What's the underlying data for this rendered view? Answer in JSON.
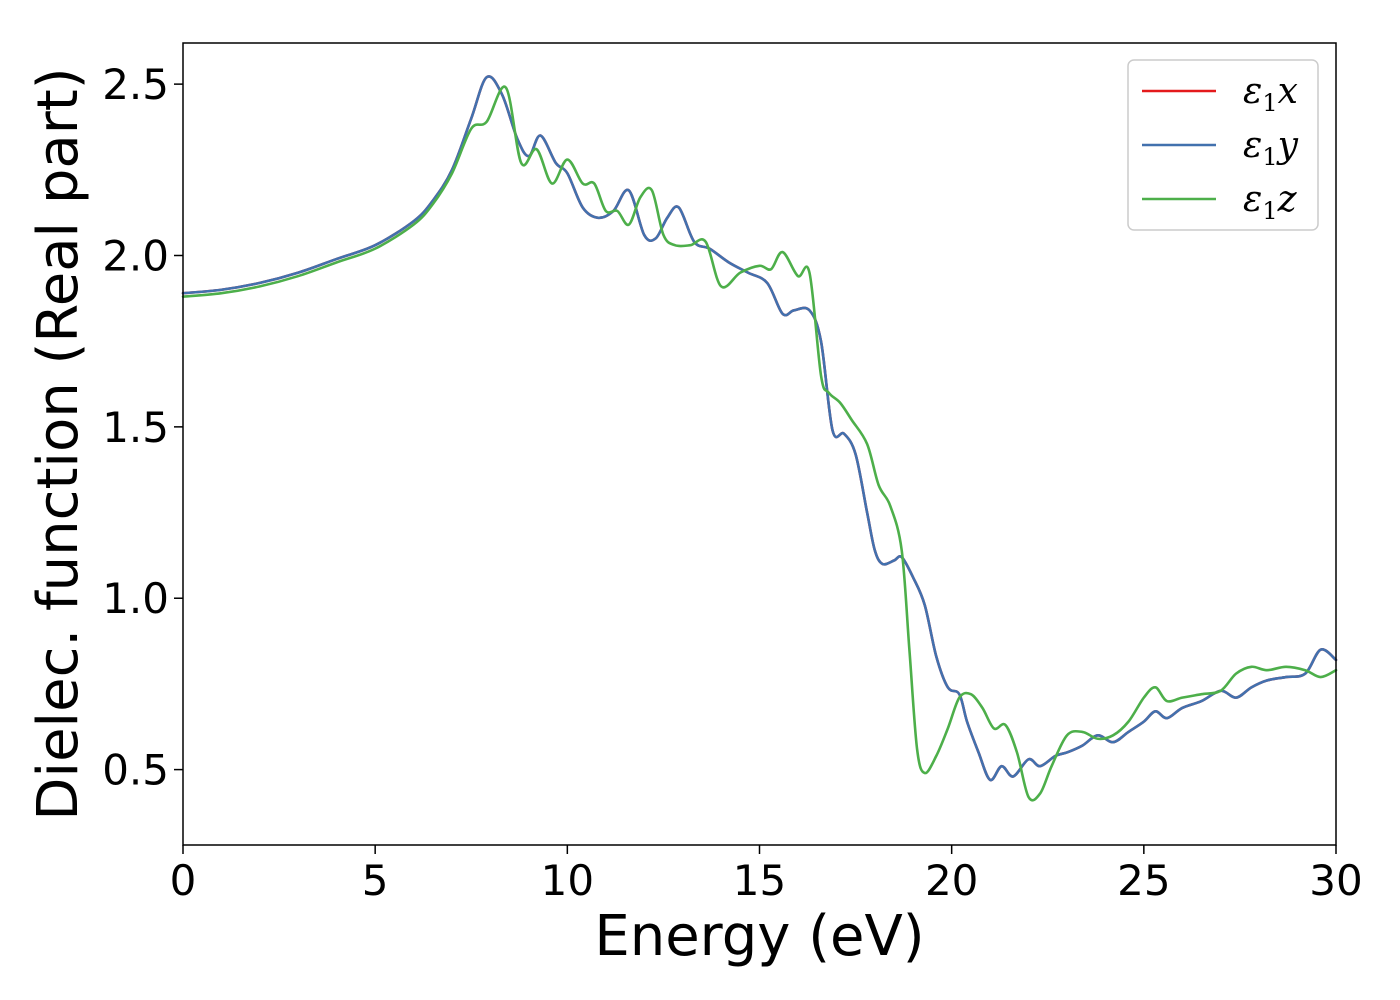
{
  "chart_data": {
    "type": "line",
    "xlabel": "Energy (eV)",
    "ylabel": "Dielec. function (Real part)",
    "xlim": [
      0,
      30
    ],
    "ylim": [
      0.28,
      2.62
    ],
    "xticks": [
      0,
      5,
      10,
      15,
      20,
      25,
      30
    ],
    "yticks": [
      0.5,
      1.0,
      1.5,
      2.0,
      2.5
    ],
    "xtick_labels": [
      "0",
      "5",
      "10",
      "15",
      "20",
      "25",
      "30"
    ],
    "ytick_labels": [
      "0.5",
      "1.0",
      "1.5",
      "2.0",
      "2.5"
    ],
    "grid": false,
    "legend_position": "top-right",
    "series": [
      {
        "name": "ε1x",
        "label_base": "ε",
        "label_sub": "1",
        "label_var": "x",
        "color": "#e41a1c",
        "x": [
          0,
          1,
          2,
          3,
          4,
          5,
          6,
          6.5,
          7,
          7.5,
          7.9,
          8.3,
          8.7,
          9.0,
          9.3,
          9.7,
          10.0,
          10.4,
          10.8,
          11.2,
          11.6,
          12.0,
          12.3,
          12.6,
          12.9,
          13.3,
          13.7,
          14.2,
          14.7,
          15.2,
          15.6,
          15.9,
          16.3,
          16.6,
          16.9,
          17.2,
          17.5,
          17.8,
          18.0,
          18.2,
          18.5,
          18.7,
          19.0,
          19.3,
          19.6,
          19.9,
          20.2,
          20.4,
          20.7,
          21.0,
          21.3,
          21.6,
          22.0,
          22.3,
          22.7,
          23.0,
          23.4,
          23.8,
          24.2,
          24.6,
          25.0,
          25.3,
          25.6,
          26.0,
          26.5,
          27.0,
          27.4,
          27.8,
          28.2,
          28.7,
          29.2,
          29.6,
          30.0
        ],
        "y": [
          1.89,
          1.9,
          1.92,
          1.95,
          1.99,
          2.03,
          2.1,
          2.16,
          2.25,
          2.4,
          2.52,
          2.47,
          2.34,
          2.29,
          2.35,
          2.27,
          2.24,
          2.14,
          2.11,
          2.13,
          2.19,
          2.06,
          2.05,
          2.11,
          2.14,
          2.04,
          2.02,
          1.98,
          1.95,
          1.92,
          1.83,
          1.84,
          1.84,
          1.75,
          1.49,
          1.48,
          1.42,
          1.25,
          1.14,
          1.1,
          1.11,
          1.12,
          1.06,
          0.98,
          0.83,
          0.74,
          0.72,
          0.64,
          0.55,
          0.47,
          0.51,
          0.48,
          0.53,
          0.51,
          0.54,
          0.55,
          0.57,
          0.6,
          0.58,
          0.61,
          0.64,
          0.67,
          0.65,
          0.68,
          0.7,
          0.73,
          0.71,
          0.74,
          0.76,
          0.77,
          0.78,
          0.85,
          0.82
        ]
      },
      {
        "name": "ε1y",
        "label_base": "ε",
        "label_sub": "1",
        "label_var": "y",
        "color": "#4271ae",
        "x": [
          0,
          1,
          2,
          3,
          4,
          5,
          6,
          6.5,
          7,
          7.5,
          7.9,
          8.3,
          8.7,
          9.0,
          9.3,
          9.7,
          10.0,
          10.4,
          10.8,
          11.2,
          11.6,
          12.0,
          12.3,
          12.6,
          12.9,
          13.3,
          13.7,
          14.2,
          14.7,
          15.2,
          15.6,
          15.9,
          16.3,
          16.6,
          16.9,
          17.2,
          17.5,
          17.8,
          18.0,
          18.2,
          18.5,
          18.7,
          19.0,
          19.3,
          19.6,
          19.9,
          20.2,
          20.4,
          20.7,
          21.0,
          21.3,
          21.6,
          22.0,
          22.3,
          22.7,
          23.0,
          23.4,
          23.8,
          24.2,
          24.6,
          25.0,
          25.3,
          25.6,
          26.0,
          26.5,
          27.0,
          27.4,
          27.8,
          28.2,
          28.7,
          29.2,
          29.6,
          30.0
        ],
        "y": [
          1.89,
          1.9,
          1.92,
          1.95,
          1.99,
          2.03,
          2.1,
          2.16,
          2.25,
          2.4,
          2.52,
          2.47,
          2.34,
          2.29,
          2.35,
          2.27,
          2.24,
          2.14,
          2.11,
          2.13,
          2.19,
          2.06,
          2.05,
          2.11,
          2.14,
          2.04,
          2.02,
          1.98,
          1.95,
          1.92,
          1.83,
          1.84,
          1.84,
          1.75,
          1.49,
          1.48,
          1.42,
          1.25,
          1.14,
          1.1,
          1.11,
          1.12,
          1.06,
          0.98,
          0.83,
          0.74,
          0.72,
          0.64,
          0.55,
          0.47,
          0.51,
          0.48,
          0.53,
          0.51,
          0.54,
          0.55,
          0.57,
          0.6,
          0.58,
          0.61,
          0.64,
          0.67,
          0.65,
          0.68,
          0.7,
          0.73,
          0.71,
          0.74,
          0.76,
          0.77,
          0.78,
          0.85,
          0.82
        ]
      },
      {
        "name": "ε1z",
        "label_base": "ε",
        "label_sub": "1",
        "label_var": "z",
        "color": "#4daf4a",
        "x": [
          0,
          1,
          2,
          3,
          4,
          5,
          6,
          6.5,
          7,
          7.5,
          7.9,
          8.4,
          8.8,
          9.2,
          9.6,
          10.0,
          10.4,
          10.7,
          11.0,
          11.3,
          11.6,
          11.9,
          12.2,
          12.5,
          12.8,
          13.2,
          13.6,
          14.0,
          14.5,
          15.0,
          15.3,
          15.6,
          16.0,
          16.3,
          16.6,
          16.8,
          17.1,
          17.4,
          17.8,
          18.1,
          18.4,
          18.7,
          18.9,
          19.1,
          19.3,
          19.6,
          19.9,
          20.2,
          20.5,
          20.8,
          21.1,
          21.4,
          21.7,
          22.0,
          22.3,
          22.6,
          23.0,
          23.4,
          23.8,
          24.2,
          24.6,
          25.0,
          25.3,
          25.6,
          26.0,
          26.5,
          27.0,
          27.4,
          27.8,
          28.2,
          28.7,
          29.2,
          29.6,
          30.0
        ],
        "y": [
          1.88,
          1.89,
          1.91,
          1.94,
          1.98,
          2.02,
          2.09,
          2.15,
          2.24,
          2.37,
          2.39,
          2.49,
          2.27,
          2.31,
          2.21,
          2.28,
          2.21,
          2.21,
          2.13,
          2.13,
          2.09,
          2.17,
          2.19,
          2.06,
          2.03,
          2.03,
          2.04,
          1.91,
          1.95,
          1.97,
          1.96,
          2.01,
          1.94,
          1.95,
          1.65,
          1.6,
          1.57,
          1.52,
          1.45,
          1.33,
          1.27,
          1.14,
          0.85,
          0.56,
          0.49,
          0.54,
          0.62,
          0.71,
          0.72,
          0.68,
          0.62,
          0.63,
          0.55,
          0.42,
          0.43,
          0.51,
          0.6,
          0.61,
          0.59,
          0.6,
          0.64,
          0.71,
          0.74,
          0.7,
          0.71,
          0.72,
          0.73,
          0.78,
          0.8,
          0.79,
          0.8,
          0.79,
          0.77,
          0.79
        ]
      }
    ]
  }
}
